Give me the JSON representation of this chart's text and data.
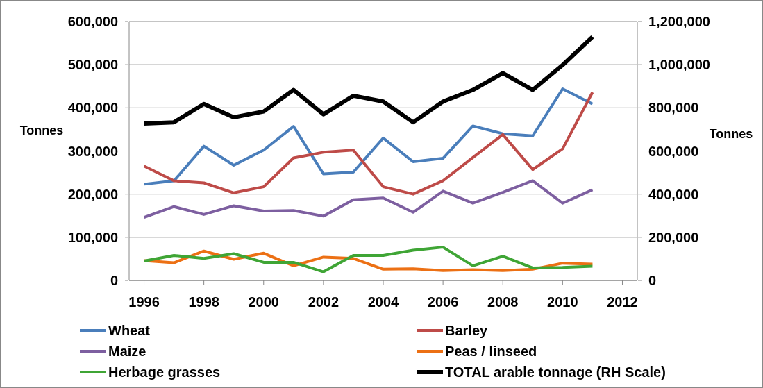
{
  "chart_data": {
    "type": "line",
    "ylabel": "Tonnes",
    "y2label": "Tonnes",
    "x": [
      1996,
      1997,
      1998,
      1999,
      2000,
      2001,
      2002,
      2003,
      2004,
      2005,
      2006,
      2007,
      2008,
      2009,
      2010,
      2011
    ],
    "xlim": [
      1995.5,
      2012.5
    ],
    "xticks": [
      1996,
      1998,
      2000,
      2002,
      2004,
      2006,
      2008,
      2010,
      2012
    ],
    "ylim": [
      0,
      600000
    ],
    "yticks": [
      {
        "value": 0,
        "label": "0"
      },
      {
        "value": 100000,
        "label": "100,000"
      },
      {
        "value": 200000,
        "label": "200,000"
      },
      {
        "value": 300000,
        "label": "300,000"
      },
      {
        "value": 400000,
        "label": "400,000"
      },
      {
        "value": 500000,
        "label": "500,000"
      },
      {
        "value": 600000,
        "label": "600,000"
      }
    ],
    "y2lim": [
      0,
      1200000
    ],
    "y2ticks": [
      {
        "value": 0,
        "label": "0"
      },
      {
        "value": 200000,
        "label": "200,000"
      },
      {
        "value": 400000,
        "label": "400,000"
      },
      {
        "value": 600000,
        "label": "600,000"
      },
      {
        "value": 800000,
        "label": "800,000"
      },
      {
        "value": 1000000,
        "label": "1,000,000"
      },
      {
        "value": 1200000,
        "label": "1,200,000"
      }
    ],
    "grid": "y",
    "legend": "bottom",
    "series": [
      {
        "name": "Wheat",
        "color": "#4a7ebb",
        "values": [
          223000,
          231000,
          311000,
          267000,
          302000,
          357000,
          247000,
          251000,
          330000,
          275000,
          283000,
          358000,
          340000,
          335000,
          444000,
          409000
        ]
      },
      {
        "name": "Barley",
        "color": "#be4b48",
        "values": [
          265000,
          231000,
          226000,
          203000,
          217000,
          284000,
          297000,
          302000,
          217000,
          200000,
          231000,
          285000,
          338000,
          257000,
          305000,
          436000
        ]
      },
      {
        "name": "Maize",
        "color": "#7d5fa0",
        "values": [
          146000,
          171000,
          153000,
          173000,
          161000,
          162000,
          149000,
          187000,
          191000,
          158000,
          207000,
          179000,
          204000,
          231000,
          179000,
          210000
        ]
      },
      {
        "name": "Peas / linseed",
        "color": "#ec7014",
        "values": [
          46000,
          41000,
          68000,
          49000,
          63000,
          34000,
          54000,
          51000,
          26000,
          27000,
          23000,
          25000,
          23000,
          26000,
          40000,
          38000
        ]
      },
      {
        "name": "Herbage grasses",
        "color": "#3fa535",
        "values": [
          45000,
          58000,
          51000,
          62000,
          42000,
          42000,
          20000,
          58000,
          58000,
          70000,
          77000,
          34000,
          56000,
          29000,
          30000,
          33000
        ]
      },
      {
        "name": "TOTAL arable tonnage (RH Scale)",
        "color": "#000000",
        "axis": "y2",
        "values": [
          727000,
          733000,
          818000,
          756000,
          783000,
          883000,
          770000,
          856000,
          829000,
          733000,
          829000,
          883000,
          961000,
          883000,
          998000,
          1129000
        ]
      }
    ]
  }
}
